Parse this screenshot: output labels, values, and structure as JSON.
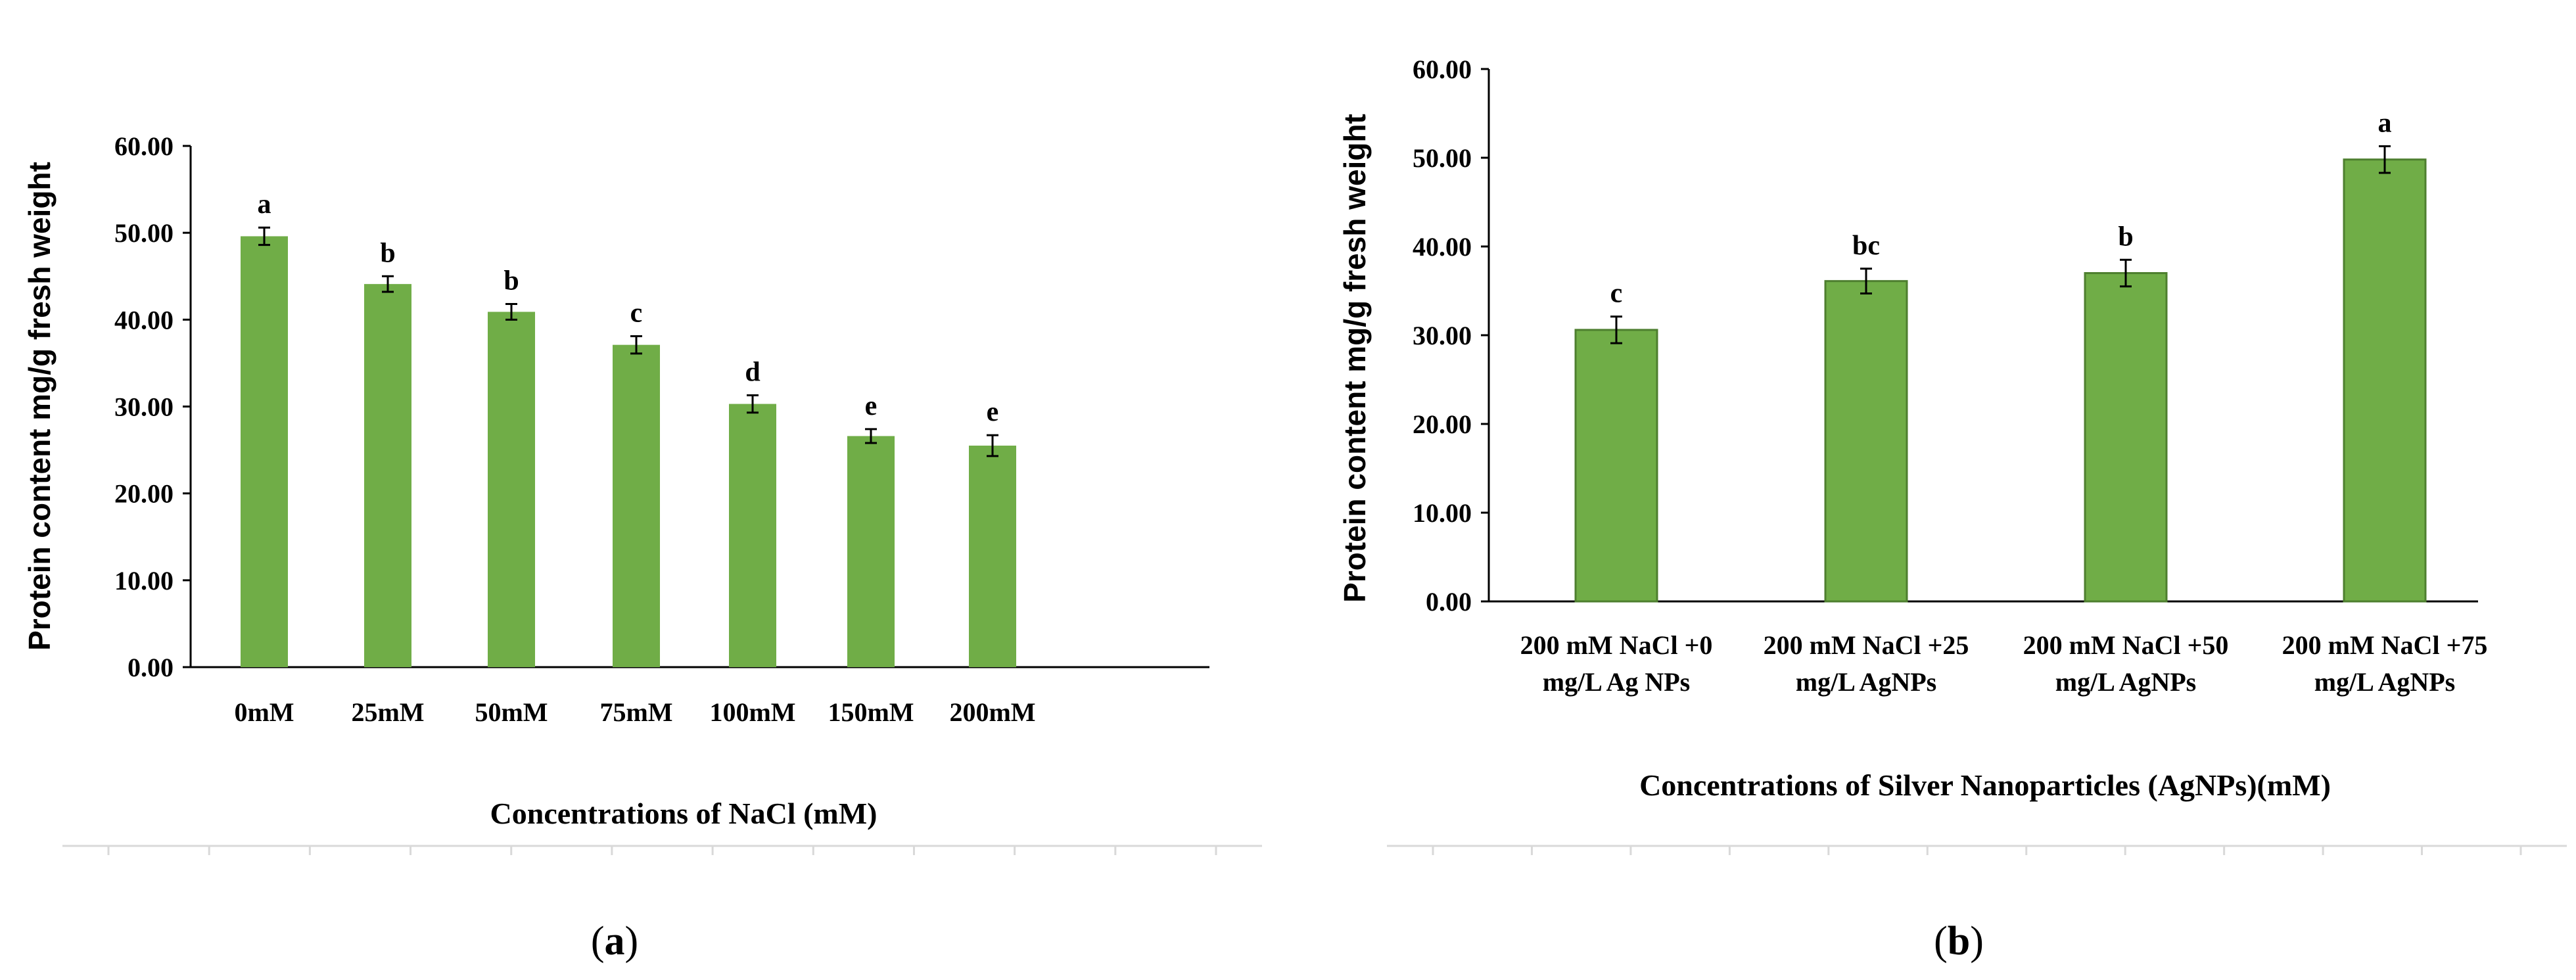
{
  "colors": {
    "bar": "#70ad47",
    "bar_edge": "#4e7f2f",
    "axis": "#000000",
    "text": "#000000",
    "faint": "#d9d9d9"
  },
  "chart_data": [
    {
      "panel_label": "(a)",
      "type": "bar",
      "title": "",
      "xlabel": "Concentrations of NaCl (mM)",
      "ylabel": "Protein content mg/g fresh weight",
      "ylim": [
        0,
        60
      ],
      "ytick_labels": [
        "0.00",
        "10.00",
        "20.00",
        "30.00",
        "40.00",
        "50.00",
        "60.00"
      ],
      "categories": [
        [
          "0mM"
        ],
        [
          "25mM"
        ],
        [
          "50mM"
        ],
        [
          "75mM"
        ],
        [
          "100mM"
        ],
        [
          "150mM"
        ],
        [
          "200mM"
        ]
      ],
      "values": [
        49.6,
        44.1,
        40.9,
        37.1,
        30.3,
        26.6,
        25.5
      ],
      "errors": [
        1.0,
        0.9,
        0.9,
        1.0,
        1.0,
        0.8,
        1.2
      ],
      "letters": [
        "a",
        "b",
        "b",
        "c",
        "d",
        "e",
        "e"
      ],
      "grid": false,
      "legend": "none"
    },
    {
      "panel_label": "(b)",
      "type": "bar",
      "title": "",
      "xlabel": "Concentrations of Silver Nanoparticles (AgNPs)(mM)",
      "ylabel": "Protein content mg/g fresh weight",
      "ylim": [
        0,
        60
      ],
      "ytick_labels": [
        "0.00",
        "10.00",
        "20.00",
        "30.00",
        "40.00",
        "50.00",
        "60.00"
      ],
      "categories": [
        [
          "200 mM NaCl +0",
          "mg/L Ag NPs"
        ],
        [
          "200 mM NaCl +25",
          "mg/L AgNPs"
        ],
        [
          "200 mM NaCl +50",
          "mg/L AgNPs"
        ],
        [
          "200 mM NaCl +75",
          "mg/L AgNPs"
        ]
      ],
      "values": [
        30.6,
        36.1,
        37.0,
        49.8
      ],
      "errors": [
        1.5,
        1.4,
        1.5,
        1.5
      ],
      "letters": [
        "c",
        "bc",
        "b",
        "a"
      ],
      "grid": false,
      "legend": "none"
    }
  ]
}
